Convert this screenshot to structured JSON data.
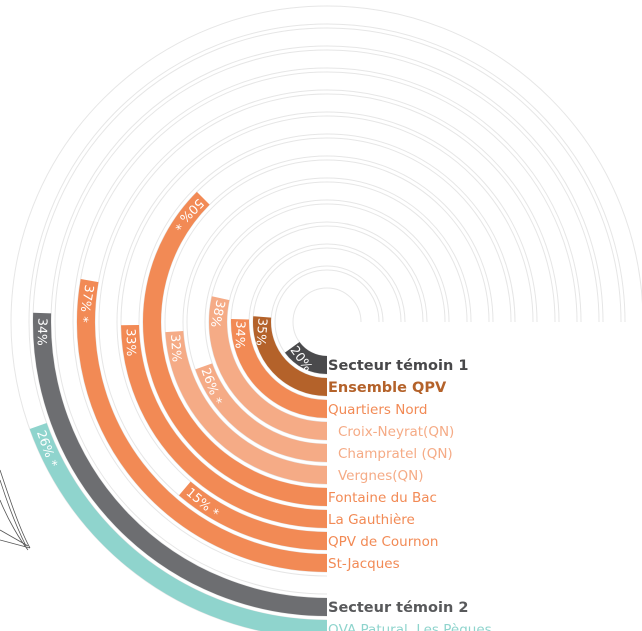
{
  "chart_data": {
    "type": "radial_bar",
    "categories": [
      "Secteur témoin 1",
      "Ensemble QPV",
      "Quartiers Nord",
      "Croix-Neyrat(QN)",
      "Champratel (QN)",
      "Vergnes(QN)",
      "Fontaine du Bac",
      "La Gauthière",
      "QPV de Cournon",
      "St-Jacques",
      "Secteur témoin 2",
      "QVA Patural, Les Pègues"
    ],
    "values": [
      20,
      35,
      34,
      38,
      26,
      32,
      50,
      33,
      15,
      37,
      34,
      26
    ],
    "value_labels": [
      "20%",
      "35%",
      "34%",
      "38%",
      "26% *",
      "32%",
      "50% *",
      "33%",
      "15% *",
      "37% *",
      "34%",
      "26% *"
    ],
    "colors": [
      "#4a4a4c",
      "#b4622a",
      "#f28a55",
      "#f5ab86",
      "#f5ab86",
      "#f5ab86",
      "#f28a55",
      "#f28a55",
      "#f28a55",
      "#f28a55",
      "#6d6e71",
      "#8fd4cd"
    ],
    "label_colors": [
      "#48484a",
      "#b4622a",
      "#f28a55",
      "#f5ab86",
      "#f5ab86",
      "#f5ab86",
      "#f28a55",
      "#f28a55",
      "#f28a55",
      "#f28a55",
      "#58595b",
      "#8fd4cd"
    ],
    "xlim": [
      0,
      100
    ]
  }
}
